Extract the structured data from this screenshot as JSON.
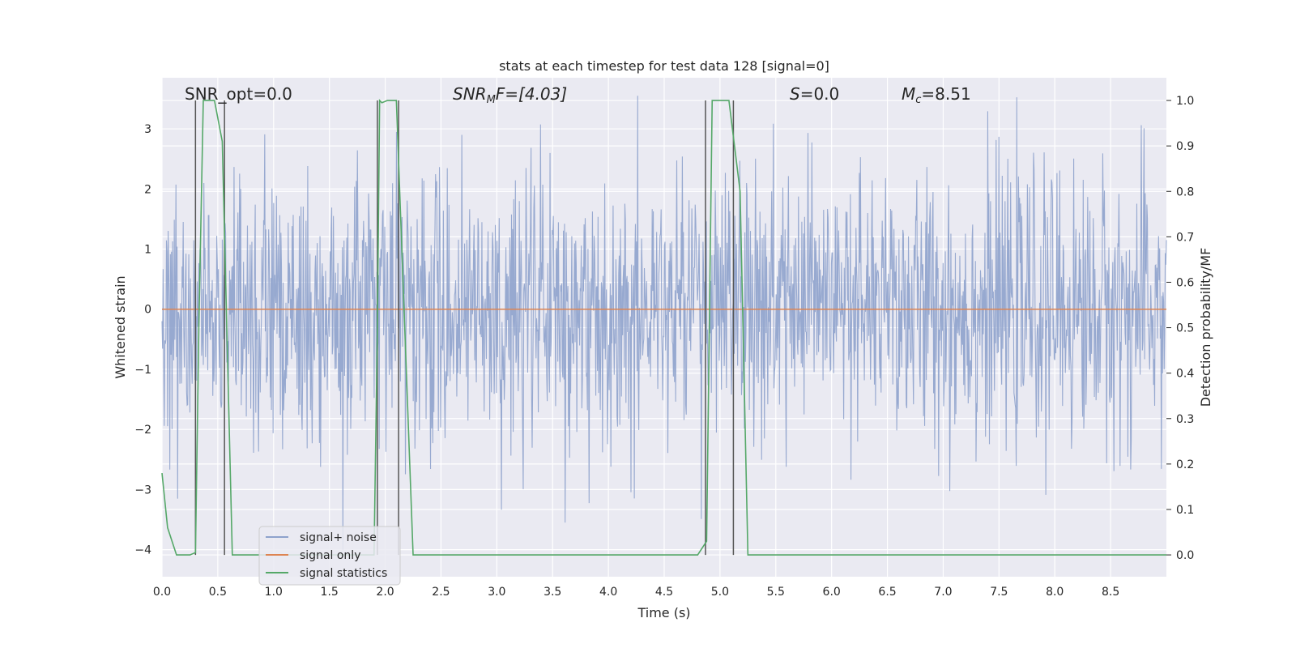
{
  "chart_data": {
    "type": "line",
    "title": "stats at each timestep for test data 128 [signal=0]",
    "xlabel": "Time (s)",
    "ylabel": "Whitened strain",
    "y2label": "Detection probability/MF",
    "xlim": [
      0,
      9.0
    ],
    "ylim": [
      -4.45,
      3.85
    ],
    "y2lim": [
      -0.048,
      1.05
    ],
    "xticks": [
      "0.0",
      "0.5",
      "1.0",
      "1.5",
      "2.0",
      "2.5",
      "3.0",
      "3.5",
      "4.0",
      "4.5",
      "5.0",
      "5.5",
      "6.0",
      "6.5",
      "7.0",
      "7.5",
      "8.0",
      "8.5"
    ],
    "yticks": [
      "3",
      "2",
      "1",
      "0",
      "−1",
      "−2",
      "−3",
      "−4"
    ],
    "y2ticks": [
      "1.0",
      "0.9",
      "0.8",
      "0.7",
      "0.6",
      "0.5",
      "0.4",
      "0.3",
      "0.2",
      "0.1",
      "0.0"
    ],
    "grid": true,
    "legend_position": "lower-left",
    "annotations": {
      "snr_opt": "SNR_opt=0.0",
      "snr_mf_main": "SNR",
      "snr_mf_sub": "M",
      "snr_mf_rest": "F=[4.03]",
      "s_main": "S",
      "s_rest": "=0.0",
      "mc_main": "M",
      "mc_sub": "c",
      "mc_rest": "=8.51"
    },
    "series": [
      {
        "name": "signal+ noise",
        "color": "#8ea2cc",
        "kind": "noise",
        "envelope": {
          "typical_abs": 1.3,
          "max_pos": 3.55,
          "min_neg": -4.0,
          "sample_count": 1800
        }
      },
      {
        "name": "signal only",
        "color": "#dd8452",
        "x": [
          0,
          9.0
        ],
        "y": [
          0,
          0
        ]
      },
      {
        "name": "signal statistics",
        "color": "#55a868",
        "axis": "right",
        "x": [
          0.0,
          0.05,
          0.13,
          0.25,
          0.3,
          0.33,
          0.37,
          0.47,
          0.54,
          0.63,
          1.0,
          1.5,
          1.9,
          1.93,
          1.95,
          1.97,
          2.02,
          2.1,
          2.25,
          2.5,
          3.0,
          3.5,
          4.0,
          4.5,
          4.8,
          4.88,
          4.93,
          4.98,
          5.08,
          5.18,
          5.25,
          5.5,
          6.0,
          7.0,
          8.0,
          9.0
        ],
        "y": [
          0.18,
          0.06,
          0.0,
          0.0,
          0.005,
          0.5,
          1.0,
          1.0,
          0.91,
          0.0,
          0.0,
          0.0,
          0.0,
          0.5,
          1.0,
          0.995,
          1.0,
          1.0,
          0.0,
          0.0,
          0.0,
          0.0,
          0.0,
          0.0,
          0.0,
          0.03,
          1.0,
          1.0,
          1.0,
          0.8,
          0.0,
          0.0,
          0.0,
          0.0,
          0.0,
          0.0
        ]
      }
    ],
    "vlines": [
      {
        "x": 0.3,
        "axis": "right",
        "range": [
          0.0,
          1.0
        ],
        "color": "#555555"
      },
      {
        "x": 0.56,
        "axis": "right",
        "range": [
          0.0,
          1.0
        ],
        "color": "#555555"
      },
      {
        "x": 1.93,
        "axis": "right",
        "range": [
          0.0,
          1.0
        ],
        "color": "#555555"
      },
      {
        "x": 2.12,
        "axis": "right",
        "range": [
          0.0,
          1.0
        ],
        "color": "#555555"
      },
      {
        "x": 4.87,
        "axis": "right",
        "range": [
          0.0,
          1.0
        ],
        "color": "#555555"
      },
      {
        "x": 5.12,
        "axis": "right",
        "range": [
          0.0,
          1.0
        ],
        "color": "#555555"
      }
    ]
  }
}
